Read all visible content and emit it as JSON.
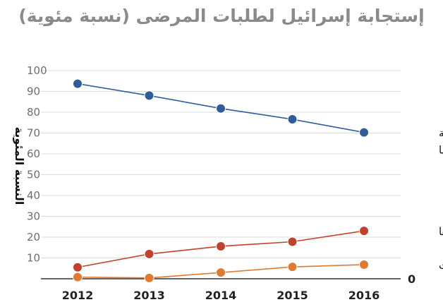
{
  "chart_data": {
    "type": "line",
    "title": "إستجابة إسرائيل لطلبات المرضى (نسبة مئوية)",
    "xlabel": "",
    "ylabel": "النسبة المئوية",
    "x": [
      "2012",
      "2013",
      "2014",
      "2015",
      "2016"
    ],
    "ylim": [
      0,
      100
    ],
    "yticks": [
      "0",
      "10",
      "20",
      "30",
      "40",
      "50",
      "60",
      "70",
      "80",
      "90",
      "100"
    ],
    "grid": true,
    "series": [
      {
        "name": "تمت الموافقة عليها",
        "label_lines": [
          "تمت الموافقة",
          "عليها"
        ],
        "color": "#2e5d9a",
        "values": [
          93.7,
          88,
          81.8,
          76.6,
          70.3
        ]
      },
      {
        "name": "تم تأخيرها",
        "label_lines": [
          "تم تأخيرها"
        ],
        "color": "#c2412d",
        "values": [
          5.5,
          11.9,
          15.6,
          17.8,
          23
        ]
      },
      {
        "name": "رُفضت",
        "label_lines": [
          "رُفضت"
        ],
        "color": "#e07a31",
        "values": [
          0.8,
          0.4,
          3,
          5.7,
          6.8
        ]
      }
    ]
  }
}
